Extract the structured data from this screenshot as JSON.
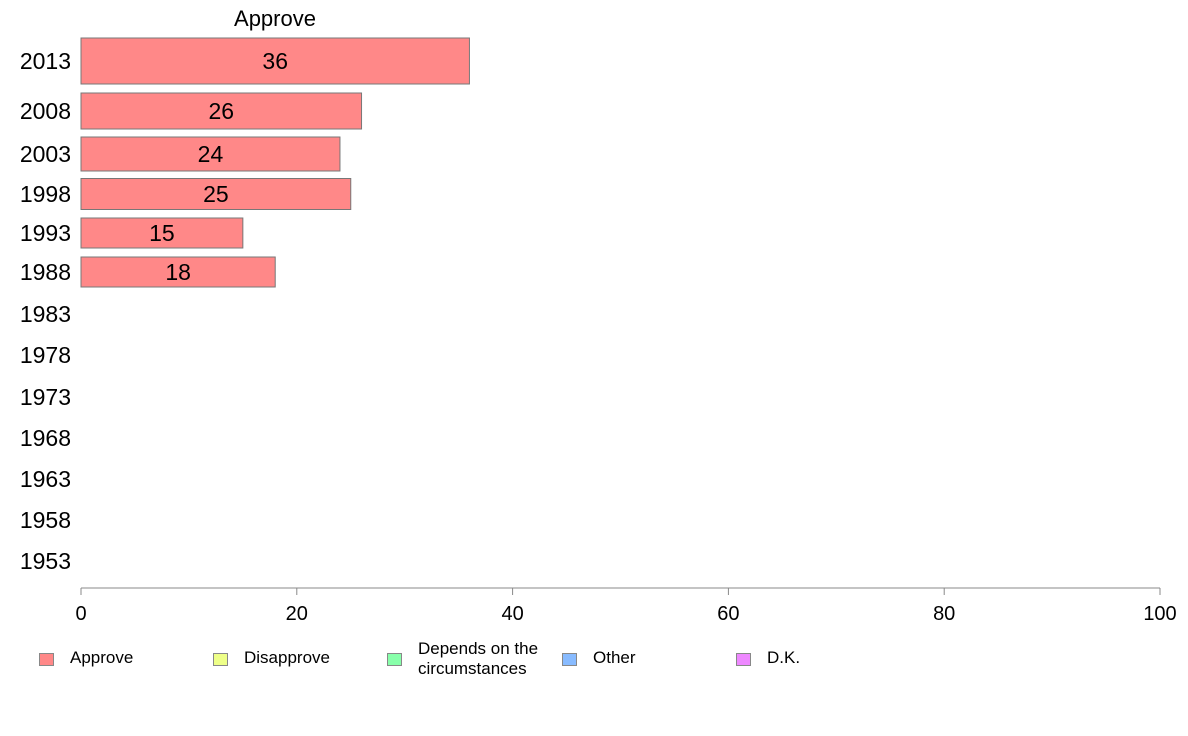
{
  "chart_data": {
    "type": "bar",
    "orientation": "horizontal",
    "title": "Approve",
    "categories": [
      "2013",
      "2008",
      "2003",
      "1998",
      "1993",
      "1988",
      "1983",
      "1978",
      "1973",
      "1968",
      "1963",
      "1958",
      "1953"
    ],
    "series": [
      {
        "name": "Approve",
        "values": [
          36,
          26,
          24,
          25,
          15,
          18,
          null,
          null,
          null,
          null,
          null,
          null,
          null
        ],
        "color": "#ff8888"
      }
    ],
    "data_labels": [
      "36",
      "26",
      "24",
      "25",
      "15",
      "18",
      "",
      "",
      "",
      "",
      "",
      "",
      ""
    ],
    "xlim": [
      0,
      100
    ],
    "xticks": [
      "0",
      "20",
      "40",
      "60",
      "80",
      "100"
    ],
    "grid": false,
    "legend_position": "bottom"
  },
  "legend": {
    "items": [
      {
        "label": "Approve",
        "color": "#ff8888"
      },
      {
        "label": "Disapprove",
        "color": "#eeff88"
      },
      {
        "label": "Depends on the\ncircumstances",
        "color": "#88ffaa"
      },
      {
        "label": "Other",
        "color": "#88bbff"
      },
      {
        "label": "D.K.",
        "color": "#ee88ff"
      }
    ]
  }
}
